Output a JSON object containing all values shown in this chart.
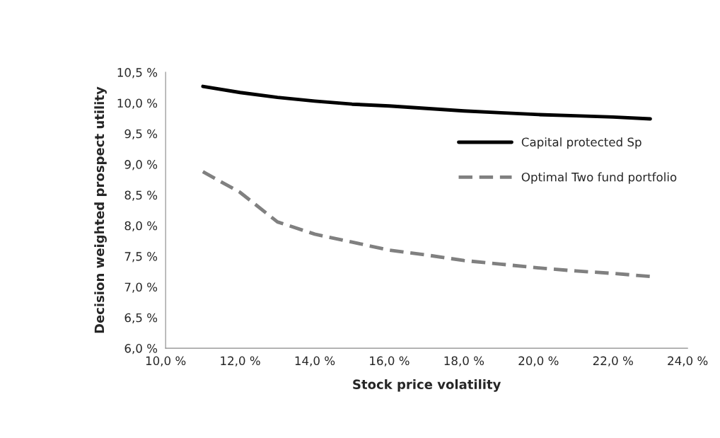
{
  "chart_data": {
    "type": "line",
    "xlabel": "Stock price volatility",
    "ylabel": "Decision weighted prospect utility",
    "x": [
      11,
      12,
      13,
      14,
      15,
      16,
      17,
      18,
      19,
      20,
      21,
      22,
      23
    ],
    "series": [
      {
        "name": "Capital protected Sp",
        "color": "#000000",
        "line_style": "solid",
        "values": [
          10.27,
          10.17,
          10.09,
          10.03,
          9.98,
          9.95,
          9.91,
          9.87,
          9.84,
          9.81,
          9.79,
          9.77,
          9.74
        ]
      },
      {
        "name": "Optimal Two fund portfolio",
        "color": "#808080",
        "line_style": "dashed",
        "values": [
          8.88,
          8.54,
          8.06,
          7.86,
          7.73,
          7.6,
          7.52,
          7.43,
          7.37,
          7.31,
          7.26,
          7.22,
          7.17
        ]
      }
    ],
    "xlim": [
      10,
      24
    ],
    "xticks": [
      {
        "value": 10,
        "label": "10,0 %"
      },
      {
        "value": 12,
        "label": "12,0 %"
      },
      {
        "value": 14,
        "label": "14,0 %"
      },
      {
        "value": 16,
        "label": "16,0 %"
      },
      {
        "value": 18,
        "label": "18,0 %"
      },
      {
        "value": 20,
        "label": "20,0 %"
      },
      {
        "value": 22,
        "label": "22,0 %"
      },
      {
        "value": 24,
        "label": "24,0 %"
      }
    ],
    "ylim": [
      6,
      10.5
    ],
    "yticks": [
      {
        "value": 6,
        "label": "6,0 %"
      },
      {
        "value": 6.5,
        "label": "6,5 %"
      },
      {
        "value": 7,
        "label": "7,0 %"
      },
      {
        "value": 7.5,
        "label": "7,5 %"
      },
      {
        "value": 8,
        "label": "8,0 %"
      },
      {
        "value": 8.5,
        "label": "8,5 %"
      },
      {
        "value": 9,
        "label": "9,0 %"
      },
      {
        "value": 9.5,
        "label": "9,5 %"
      },
      {
        "value": 10,
        "label": "10,0 %"
      },
      {
        "value": 10.5,
        "label": "10,5 %"
      }
    ],
    "grid": false,
    "legend": "right",
    "marker": "none"
  }
}
